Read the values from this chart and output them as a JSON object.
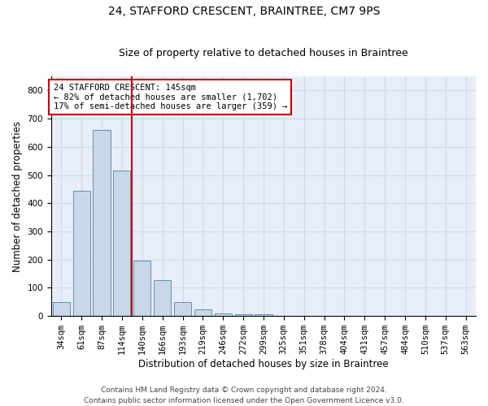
{
  "title": "24, STAFFORD CRESCENT, BRAINTREE, CM7 9PS",
  "subtitle": "Size of property relative to detached houses in Braintree",
  "xlabel": "Distribution of detached houses by size in Braintree",
  "ylabel": "Number of detached properties",
  "categories": [
    "34sqm",
    "61sqm",
    "87sqm",
    "114sqm",
    "140sqm",
    "166sqm",
    "193sqm",
    "219sqm",
    "246sqm",
    "272sqm",
    "299sqm",
    "325sqm",
    "351sqm",
    "378sqm",
    "404sqm",
    "431sqm",
    "457sqm",
    "484sqm",
    "510sqm",
    "537sqm",
    "563sqm"
  ],
  "values": [
    50,
    443,
    660,
    515,
    195,
    128,
    50,
    25,
    10,
    5,
    5,
    0,
    0,
    0,
    0,
    0,
    0,
    0,
    0,
    0,
    0
  ],
  "bar_color": "#c8d8e8",
  "bar_edge_color": "#6090b0",
  "property_line_x": 3.5,
  "property_line_color": "#cc0000",
  "annotation_text": "24 STAFFORD CRESCENT: 145sqm\n← 82% of detached houses are smaller (1,702)\n17% of semi-detached houses are larger (359) →",
  "annotation_box_color": "#ffffff",
  "annotation_box_edge_color": "#cc0000",
  "ylim": [
    0,
    850
  ],
  "yticks": [
    0,
    100,
    200,
    300,
    400,
    500,
    600,
    700,
    800
  ],
  "grid_color": "#d0d8e8",
  "background_color": "#e8eef8",
  "footer_line1": "Contains HM Land Registry data © Crown copyright and database right 2024.",
  "footer_line2": "Contains public sector information licensed under the Open Government Licence v3.0.",
  "title_fontsize": 10,
  "subtitle_fontsize": 9,
  "xlabel_fontsize": 8.5,
  "ylabel_fontsize": 8.5,
  "tick_fontsize": 7.5,
  "annotation_fontsize": 7.5,
  "footer_fontsize": 6.5
}
